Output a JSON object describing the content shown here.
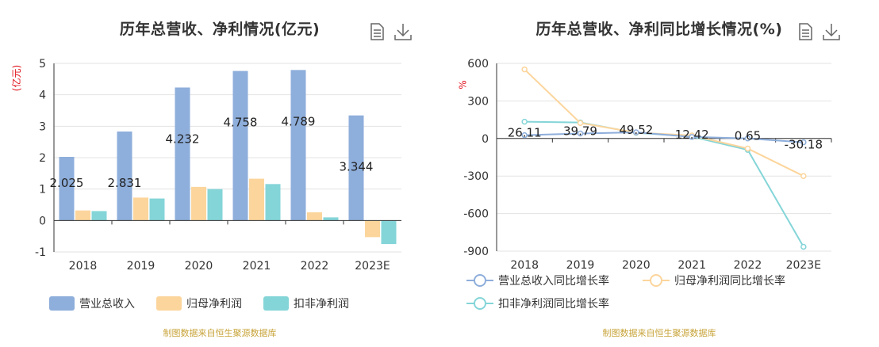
{
  "chart_data": [
    {
      "type": "bar",
      "title": "历年总营收、净利情况(亿元)",
      "unit": "(亿元)",
      "categories": [
        "2018",
        "2019",
        "2020",
        "2021",
        "2022",
        "2023E"
      ],
      "ylim": [
        -1,
        5
      ],
      "yticks": [
        -1,
        0,
        1,
        2,
        3,
        4,
        5
      ],
      "grid": true,
      "legend_position": "bottom",
      "series": [
        {
          "name": "营业总收入",
          "color": "#8eaedb",
          "values": [
            2.025,
            2.831,
            4.232,
            4.758,
            4.789,
            3.344
          ],
          "labels": [
            "2.025",
            "2.831",
            "4.232",
            "4.758",
            "4.789",
            "3.344"
          ]
        },
        {
          "name": "归母净利润",
          "color": "#fcd59c",
          "values": [
            0.32,
            0.73,
            1.07,
            1.33,
            0.26,
            -0.53
          ]
        },
        {
          "name": "扣非净利润",
          "color": "#84d5d8",
          "values": [
            0.3,
            0.7,
            1.0,
            1.16,
            0.1,
            -0.75
          ]
        }
      ],
      "source": "制图数据来自恒生聚源数据库"
    },
    {
      "type": "line",
      "title": "历年总营收、净利同比增长情况(%)",
      "unit": "%",
      "categories": [
        "2018",
        "2019",
        "2020",
        "2021",
        "2022",
        "2023E"
      ],
      "ylim": [
        -900,
        600
      ],
      "yticks": [
        -900,
        -600,
        -300,
        0,
        300,
        600
      ],
      "grid": true,
      "legend_position": "bottom",
      "series": [
        {
          "name": "营业总收入同比增长率",
          "color": "#8eaedb",
          "values": [
            26.11,
            39.79,
            49.52,
            12.42,
            0.65,
            -30.18
          ],
          "labels": [
            "26.11",
            "39.79",
            "49.52",
            "12.42",
            "0.65",
            "-30.18"
          ]
        },
        {
          "name": "归母净利润同比增长率",
          "color": "#fcd59c",
          "values": [
            552,
            124,
            47,
            24,
            -80,
            -300
          ]
        },
        {
          "name": "扣非净利润同比增长率",
          "color": "#84d5d8",
          "values": [
            134,
            128,
            45,
            15,
            -91,
            -865
          ]
        }
      ],
      "source": "制图数据来自恒生聚源数据库"
    }
  ],
  "icons": {
    "data_view": "document-icon",
    "download": "download-icon"
  }
}
